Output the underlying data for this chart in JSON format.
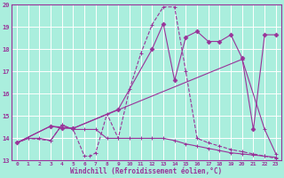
{
  "xlabel": "Windchill (Refroidissement éolien,°C)",
  "bg_color": "#aaeedd",
  "grid_color": "#cceeee",
  "line_color": "#993399",
  "xlim": [
    -0.5,
    23.5
  ],
  "ylim": [
    13,
    20
  ],
  "xticks": [
    0,
    1,
    2,
    3,
    4,
    5,
    6,
    7,
    8,
    9,
    10,
    11,
    12,
    13,
    14,
    15,
    16,
    17,
    18,
    19,
    20,
    21,
    22,
    23
  ],
  "yticks": [
    13,
    14,
    15,
    16,
    17,
    18,
    19,
    20
  ],
  "series": [
    {
      "x": [
        0,
        1,
        2,
        3,
        4,
        5,
        6,
        7,
        8,
        9,
        10,
        11,
        12,
        13,
        14,
        15,
        16,
        17,
        18,
        19,
        20,
        21,
        22,
        23
      ],
      "y": [
        13.8,
        14.0,
        14.0,
        13.9,
        14.6,
        14.4,
        14.4,
        14.4,
        14.0,
        14.0,
        14.0,
        14.0,
        14.0,
        14.0,
        13.9,
        13.75,
        13.65,
        13.55,
        13.45,
        13.35,
        13.3,
        13.25,
        13.2,
        13.15
      ]
    },
    {
      "x": [
        0,
        1,
        3,
        4,
        5,
        6,
        6.5,
        7,
        8,
        9,
        10,
        11,
        12,
        13,
        14,
        15,
        16,
        17,
        18,
        19,
        20,
        21,
        22,
        23
      ],
      "y": [
        13.8,
        14.0,
        13.9,
        14.6,
        14.4,
        13.2,
        13.2,
        13.35,
        15.1,
        14.0,
        16.2,
        17.8,
        19.1,
        19.9,
        19.9,
        17.0,
        14.0,
        13.8,
        13.65,
        13.5,
        13.4,
        13.3,
        13.2,
        13.1
      ]
    },
    {
      "x": [
        0,
        3,
        4,
        5,
        9,
        12,
        13,
        14,
        15,
        16,
        17,
        18,
        19,
        20,
        21,
        22,
        23
      ],
      "y": [
        13.8,
        14.55,
        14.45,
        14.45,
        15.3,
        18.0,
        19.15,
        16.6,
        18.55,
        18.8,
        18.35,
        18.35,
        18.65,
        17.6,
        14.4,
        18.65,
        18.65
      ]
    },
    {
      "x": [
        0,
        3,
        5,
        20,
        22,
        23
      ],
      "y": [
        13.8,
        14.55,
        14.45,
        17.55,
        14.4,
        13.3
      ]
    }
  ]
}
